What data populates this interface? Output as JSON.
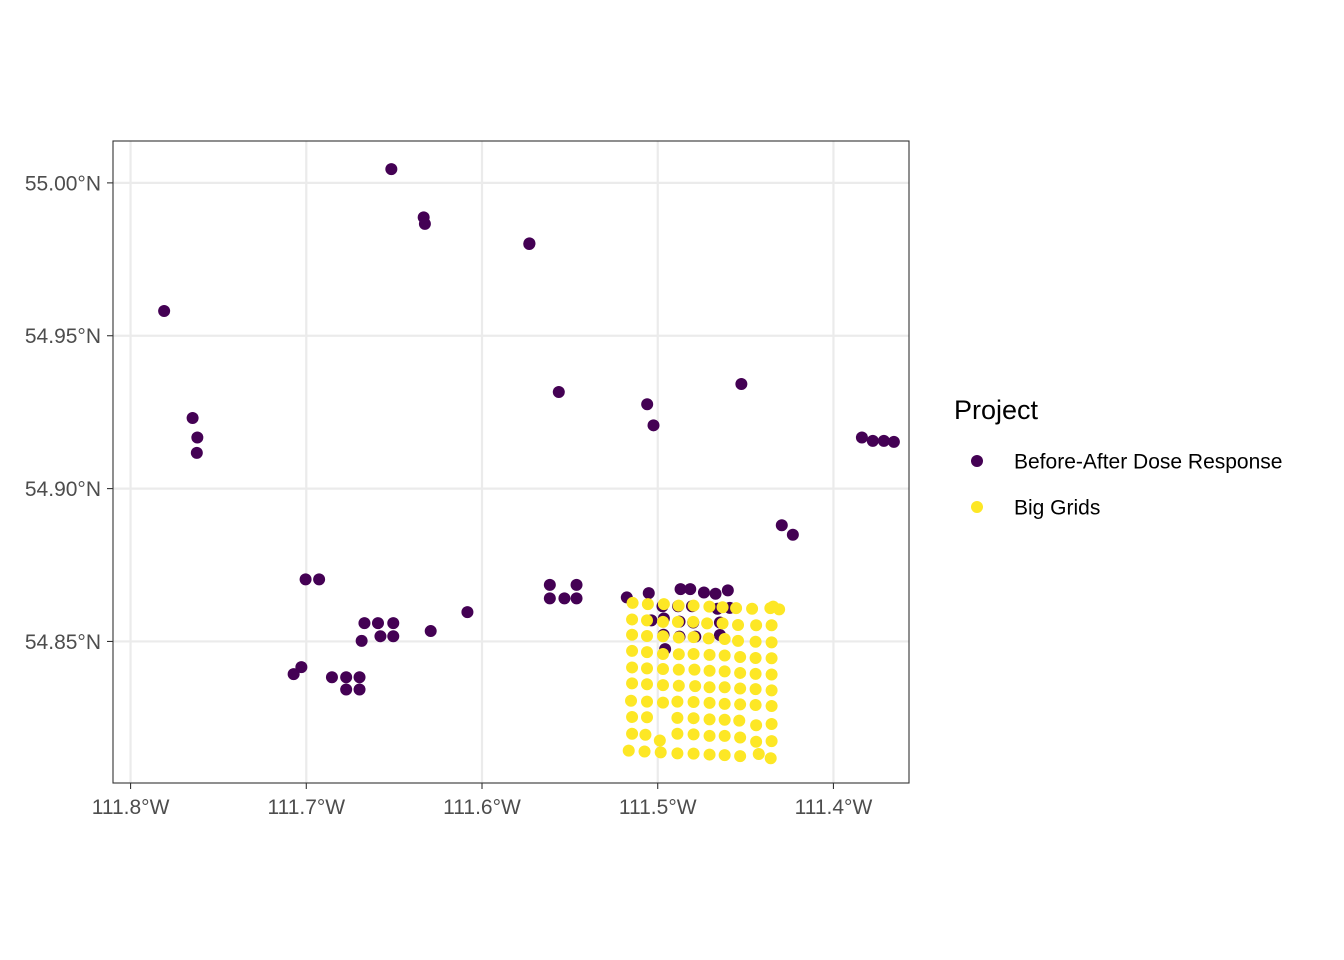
{
  "chart_data": {
    "type": "scatter",
    "title": "",
    "xlabel": "",
    "ylabel": "",
    "xlim": [
      -111.81,
      -111.357
    ],
    "ylim": [
      54.8037,
      55.0137
    ],
    "x_ticks": [
      {
        "value": -111.8,
        "label": "111.8°W"
      },
      {
        "value": -111.7,
        "label": "111.7°W"
      },
      {
        "value": -111.6,
        "label": "111.6°W"
      },
      {
        "value": -111.5,
        "label": "111.5°W"
      },
      {
        "value": -111.4,
        "label": "111.4°W"
      }
    ],
    "y_ticks": [
      {
        "value": 54.85,
        "label": "54.85°N"
      },
      {
        "value": 54.9,
        "label": "54.90°N"
      },
      {
        "value": 54.95,
        "label": "54.95°N"
      },
      {
        "value": 55.0,
        "label": "55.00°N"
      }
    ],
    "grid": true,
    "legend": {
      "title": "Project",
      "position": "right",
      "entries": [
        {
          "label": "Before-After Dose Response",
          "color": "#440154"
        },
        {
          "label": "Big Grids",
          "color": "#FDE725"
        }
      ]
    },
    "series": [
      {
        "name": "Before-After Dose Response",
        "color": "#440154",
        "points": [
          [
            -111.6516,
            55.0045
          ],
          [
            -111.6332,
            54.9887
          ],
          [
            -111.6325,
            54.9866
          ],
          [
            -111.573,
            54.9802
          ],
          [
            -111.5731,
            54.98
          ],
          [
            -111.7809,
            54.9581
          ],
          [
            -111.5563,
            54.9316
          ],
          [
            -111.4524,
            54.9342
          ],
          [
            -111.506,
            54.9276
          ],
          [
            -111.5024,
            54.9207
          ],
          [
            -111.7647,
            54.9231
          ],
          [
            -111.762,
            54.9167
          ],
          [
            -111.7623,
            54.9117
          ],
          [
            -111.3838,
            54.9167
          ],
          [
            -111.3776,
            54.9156
          ],
          [
            -111.3713,
            54.9156
          ],
          [
            -111.3656,
            54.9153
          ],
          [
            -111.4294,
            54.888
          ],
          [
            -111.4231,
            54.8849
          ],
          [
            -111.7004,
            54.8703
          ],
          [
            -111.6927,
            54.8703
          ],
          [
            -111.5614,
            54.8685
          ],
          [
            -111.5462,
            54.8685
          ],
          [
            -111.5614,
            54.8641
          ],
          [
            -111.5531,
            54.8641
          ],
          [
            -111.5462,
            54.8641
          ],
          [
            -111.6083,
            54.8596
          ],
          [
            -111.6292,
            54.8534
          ],
          [
            -111.6669,
            54.856
          ],
          [
            -111.6592,
            54.856
          ],
          [
            -111.6505,
            54.856
          ],
          [
            -111.6685,
            54.8502
          ],
          [
            -111.6578,
            54.8517
          ],
          [
            -111.6505,
            54.8517
          ],
          [
            -111.7072,
            54.8393
          ],
          [
            -111.7028,
            54.8416
          ],
          [
            -111.6854,
            54.8383
          ],
          [
            -111.6773,
            54.8383
          ],
          [
            -111.6697,
            54.8383
          ],
          [
            -111.6773,
            54.8343
          ],
          [
            -111.6697,
            54.8343
          ],
          [
            -111.5176,
            54.8644
          ],
          [
            -111.5051,
            54.8658
          ],
          [
            -111.487,
            54.8671
          ],
          [
            -111.4815,
            54.8671
          ],
          [
            -111.4737,
            54.866
          ],
          [
            -111.4671,
            54.8656
          ],
          [
            -111.4601,
            54.8667
          ],
          [
            -111.4973,
            54.8615
          ],
          [
            -111.4884,
            54.8615
          ],
          [
            -111.4805,
            54.8615
          ],
          [
            -111.466,
            54.8607
          ],
          [
            -111.459,
            54.861
          ],
          [
            -111.5036,
            54.8569
          ],
          [
            -111.4965,
            54.8575
          ],
          [
            -111.4876,
            54.8565
          ],
          [
            -111.4798,
            54.8562
          ],
          [
            -111.4646,
            54.8562
          ],
          [
            -111.4967,
            54.8522
          ],
          [
            -111.4876,
            54.8516
          ],
          [
            -111.4786,
            54.8516
          ],
          [
            -111.4646,
            54.8521
          ],
          [
            -111.4958,
            54.8475
          ]
        ]
      },
      {
        "name": "Big Grids",
        "color": "#FDE725",
        "points": [
          [
            -111.5143,
            54.8626
          ],
          [
            -111.5056,
            54.8622
          ],
          [
            -111.4965,
            54.8622
          ],
          [
            -111.4881,
            54.8617
          ],
          [
            -111.4796,
            54.8617
          ],
          [
            -111.4706,
            54.8614
          ],
          [
            -111.4631,
            54.8612
          ],
          [
            -111.4554,
            54.8609
          ],
          [
            -111.4463,
            54.8607
          ],
          [
            -111.4359,
            54.8609
          ],
          [
            -111.4309,
            54.8605
          ],
          [
            -111.4343,
            54.8614
          ],
          [
            -111.5146,
            54.8572
          ],
          [
            -111.5061,
            54.8569
          ],
          [
            -111.497,
            54.8564
          ],
          [
            -111.4885,
            54.8564
          ],
          [
            -111.4798,
            54.8564
          ],
          [
            -111.4719,
            54.8559
          ],
          [
            -111.4631,
            54.8559
          ],
          [
            -111.4543,
            54.8554
          ],
          [
            -111.444,
            54.8553
          ],
          [
            -111.4352,
            54.8553
          ],
          [
            -111.5146,
            54.8522
          ],
          [
            -111.5061,
            54.8518
          ],
          [
            -111.497,
            54.8517
          ],
          [
            -111.488,
            54.8513
          ],
          [
            -111.4796,
            54.8514
          ],
          [
            -111.471,
            54.851
          ],
          [
            -111.4619,
            54.8508
          ],
          [
            -111.4543,
            54.8502
          ],
          [
            -111.4443,
            54.8499
          ],
          [
            -111.4352,
            54.8497
          ],
          [
            -111.5146,
            54.8469
          ],
          [
            -111.5061,
            54.8465
          ],
          [
            -111.497,
            54.8459
          ],
          [
            -111.488,
            54.8458
          ],
          [
            -111.4796,
            54.8459
          ],
          [
            -111.4705,
            54.8456
          ],
          [
            -111.4619,
            54.8454
          ],
          [
            -111.4531,
            54.8449
          ],
          [
            -111.4443,
            54.8446
          ],
          [
            -111.4352,
            54.8445
          ],
          [
            -111.5146,
            54.8415
          ],
          [
            -111.5061,
            54.8412
          ],
          [
            -111.497,
            54.841
          ],
          [
            -111.488,
            54.8408
          ],
          [
            -111.4791,
            54.8408
          ],
          [
            -111.4705,
            54.8404
          ],
          [
            -111.4619,
            54.8402
          ],
          [
            -111.4531,
            54.8397
          ],
          [
            -111.4443,
            54.8394
          ],
          [
            -111.4352,
            54.8392
          ],
          [
            -111.5146,
            54.8363
          ],
          [
            -111.5061,
            54.836
          ],
          [
            -111.497,
            54.8357
          ],
          [
            -111.488,
            54.8355
          ],
          [
            -111.4787,
            54.8354
          ],
          [
            -111.4705,
            54.835
          ],
          [
            -111.4619,
            54.835
          ],
          [
            -111.4531,
            54.8346
          ],
          [
            -111.4443,
            54.8344
          ],
          [
            -111.4352,
            54.834
          ],
          [
            -111.5152,
            54.8306
          ],
          [
            -111.5061,
            54.8303
          ],
          [
            -111.497,
            54.83
          ],
          [
            -111.4888,
            54.8303
          ],
          [
            -111.4796,
            54.8302
          ],
          [
            -111.4705,
            54.8299
          ],
          [
            -111.4619,
            54.8296
          ],
          [
            -111.4531,
            54.8294
          ],
          [
            -111.4443,
            54.8292
          ],
          [
            -111.4352,
            54.8289
          ],
          [
            -111.5146,
            54.8253
          ],
          [
            -111.5061,
            54.8252
          ],
          [
            -111.4888,
            54.825
          ],
          [
            -111.4796,
            54.8249
          ],
          [
            -111.4705,
            54.8245
          ],
          [
            -111.4619,
            54.8244
          ],
          [
            -111.4536,
            54.8241
          ],
          [
            -111.444,
            54.8226
          ],
          [
            -111.4352,
            54.823
          ],
          [
            -111.5146,
            54.8198
          ],
          [
            -111.507,
            54.8195
          ],
          [
            -111.4988,
            54.8176
          ],
          [
            -111.4888,
            54.8198
          ],
          [
            -111.4796,
            54.8196
          ],
          [
            -111.4705,
            54.8191
          ],
          [
            -111.4619,
            54.8191
          ],
          [
            -111.4531,
            54.8186
          ],
          [
            -111.444,
            54.8172
          ],
          [
            -111.4352,
            54.8174
          ],
          [
            -111.5165,
            54.8143
          ],
          [
            -111.5075,
            54.814
          ],
          [
            -111.4983,
            54.8137
          ],
          [
            -111.4888,
            54.8134
          ],
          [
            -111.4796,
            54.8133
          ],
          [
            -111.4705,
            54.813
          ],
          [
            -111.4619,
            54.8128
          ],
          [
            -111.4531,
            54.8125
          ],
          [
            -111.4425,
            54.8132
          ],
          [
            -111.4357,
            54.8118
          ]
        ]
      }
    ]
  }
}
